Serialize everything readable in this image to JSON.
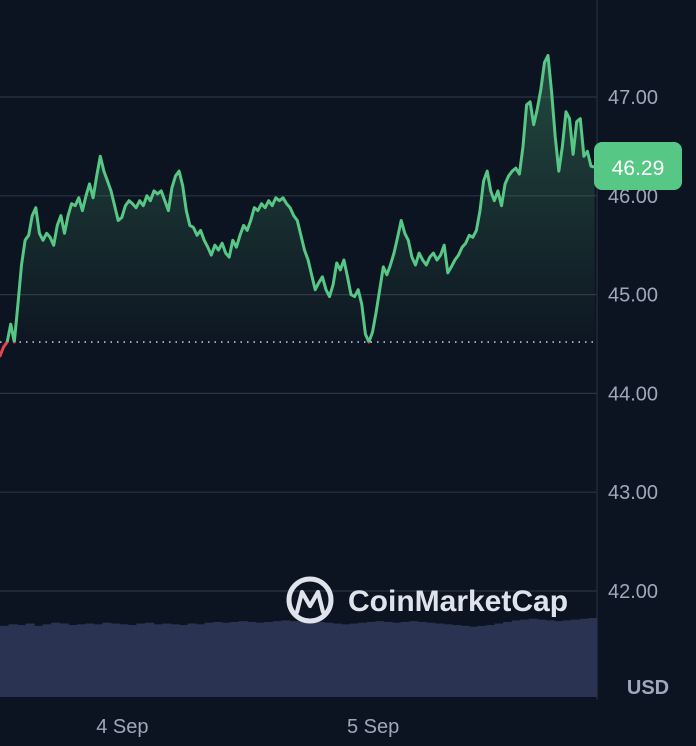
{
  "chart_data": {
    "type": "line",
    "currency": "USD",
    "current_price": "46.29",
    "baseline": 44.52,
    "ylim": [
      41.0,
      48.0
    ],
    "yticks": [
      {
        "value": 47.0,
        "label": "47.00"
      },
      {
        "value": 46.0,
        "label": "46.00"
      },
      {
        "value": 45.0,
        "label": "45.00"
      },
      {
        "value": 44.0,
        "label": "44.00"
      },
      {
        "value": 43.0,
        "label": "43.00"
      },
      {
        "value": 42.0,
        "label": "42.00"
      }
    ],
    "xticks": [
      {
        "value": 0.21,
        "label": "4 Sep"
      },
      {
        "value": 0.63,
        "label": "5 Sep"
      }
    ],
    "colors": {
      "up": "#57c785",
      "down": "#e0484e",
      "grid": "#2a3245",
      "volume": "#2b3352",
      "badge": "#57c785"
    },
    "series": [
      {
        "values": [
          [
            0.0,
            44.38
          ],
          [
            0.006,
            44.47
          ],
          [
            0.012,
            44.52
          ],
          [
            0.018,
            44.7
          ],
          [
            0.024,
            44.52
          ],
          [
            0.03,
            44.9
          ],
          [
            0.036,
            45.3
          ],
          [
            0.042,
            45.55
          ],
          [
            0.048,
            45.6
          ],
          [
            0.054,
            45.8
          ],
          [
            0.06,
            45.88
          ],
          [
            0.066,
            45.62
          ],
          [
            0.072,
            45.55
          ],
          [
            0.078,
            45.62
          ],
          [
            0.084,
            45.58
          ],
          [
            0.09,
            45.5
          ],
          [
            0.096,
            45.7
          ],
          [
            0.102,
            45.8
          ],
          [
            0.108,
            45.62
          ],
          [
            0.114,
            45.8
          ],
          [
            0.12,
            45.92
          ],
          [
            0.126,
            45.9
          ],
          [
            0.132,
            45.98
          ],
          [
            0.138,
            45.85
          ],
          [
            0.144,
            46.0
          ],
          [
            0.15,
            46.12
          ],
          [
            0.156,
            45.98
          ],
          [
            0.162,
            46.2
          ],
          [
            0.168,
            46.4
          ],
          [
            0.174,
            46.25
          ],
          [
            0.18,
            46.15
          ],
          [
            0.186,
            46.05
          ],
          [
            0.192,
            45.9
          ],
          [
            0.198,
            45.75
          ],
          [
            0.204,
            45.78
          ],
          [
            0.21,
            45.9
          ],
          [
            0.216,
            45.95
          ],
          [
            0.222,
            45.92
          ],
          [
            0.228,
            45.88
          ],
          [
            0.234,
            45.95
          ],
          [
            0.24,
            45.9
          ],
          [
            0.246,
            46.0
          ],
          [
            0.252,
            45.95
          ],
          [
            0.258,
            46.05
          ],
          [
            0.264,
            46.02
          ],
          [
            0.27,
            46.05
          ],
          [
            0.276,
            45.95
          ],
          [
            0.282,
            45.85
          ],
          [
            0.288,
            46.08
          ],
          [
            0.294,
            46.2
          ],
          [
            0.3,
            46.25
          ],
          [
            0.306,
            46.1
          ],
          [
            0.312,
            45.85
          ],
          [
            0.318,
            45.7
          ],
          [
            0.324,
            45.68
          ],
          [
            0.33,
            45.6
          ],
          [
            0.336,
            45.65
          ],
          [
            0.342,
            45.55
          ],
          [
            0.348,
            45.48
          ],
          [
            0.354,
            45.4
          ],
          [
            0.36,
            45.5
          ],
          [
            0.366,
            45.45
          ],
          [
            0.372,
            45.52
          ],
          [
            0.378,
            45.42
          ],
          [
            0.384,
            45.38
          ],
          [
            0.39,
            45.55
          ],
          [
            0.396,
            45.48
          ],
          [
            0.402,
            45.6
          ],
          [
            0.408,
            45.7
          ],
          [
            0.414,
            45.65
          ],
          [
            0.42,
            45.75
          ],
          [
            0.426,
            45.88
          ],
          [
            0.432,
            45.85
          ],
          [
            0.438,
            45.92
          ],
          [
            0.444,
            45.88
          ],
          [
            0.45,
            45.95
          ],
          [
            0.456,
            45.9
          ],
          [
            0.462,
            45.98
          ],
          [
            0.468,
            45.95
          ],
          [
            0.474,
            45.98
          ],
          [
            0.48,
            45.92
          ],
          [
            0.486,
            45.88
          ],
          [
            0.492,
            45.8
          ],
          [
            0.498,
            45.75
          ],
          [
            0.504,
            45.6
          ],
          [
            0.51,
            45.45
          ],
          [
            0.516,
            45.35
          ],
          [
            0.522,
            45.2
          ],
          [
            0.528,
            45.05
          ],
          [
            0.534,
            45.12
          ],
          [
            0.54,
            45.18
          ],
          [
            0.546,
            45.05
          ],
          [
            0.552,
            44.98
          ],
          [
            0.558,
            45.1
          ],
          [
            0.564,
            45.32
          ],
          [
            0.57,
            45.25
          ],
          [
            0.576,
            45.35
          ],
          [
            0.582,
            45.18
          ],
          [
            0.588,
            45.0
          ],
          [
            0.594,
            44.98
          ],
          [
            0.6,
            45.05
          ],
          [
            0.606,
            44.9
          ],
          [
            0.612,
            44.6
          ],
          [
            0.618,
            44.52
          ],
          [
            0.624,
            44.62
          ],
          [
            0.63,
            44.82
          ],
          [
            0.636,
            45.05
          ],
          [
            0.642,
            45.28
          ],
          [
            0.648,
            45.2
          ],
          [
            0.654,
            45.3
          ],
          [
            0.66,
            45.42
          ],
          [
            0.666,
            45.58
          ],
          [
            0.672,
            45.75
          ],
          [
            0.678,
            45.62
          ],
          [
            0.684,
            45.55
          ],
          [
            0.69,
            45.38
          ],
          [
            0.696,
            45.3
          ],
          [
            0.702,
            45.42
          ],
          [
            0.708,
            45.35
          ],
          [
            0.714,
            45.3
          ],
          [
            0.72,
            45.38
          ],
          [
            0.726,
            45.42
          ],
          [
            0.732,
            45.35
          ],
          [
            0.738,
            45.4
          ],
          [
            0.744,
            45.5
          ],
          [
            0.75,
            45.22
          ],
          [
            0.756,
            45.28
          ],
          [
            0.762,
            45.35
          ],
          [
            0.768,
            45.4
          ],
          [
            0.774,
            45.48
          ],
          [
            0.78,
            45.52
          ],
          [
            0.786,
            45.6
          ],
          [
            0.792,
            45.58
          ],
          [
            0.798,
            45.65
          ],
          [
            0.804,
            45.85
          ],
          [
            0.81,
            46.15
          ],
          [
            0.816,
            46.25
          ],
          [
            0.822,
            46.05
          ],
          [
            0.828,
            45.95
          ],
          [
            0.834,
            46.05
          ],
          [
            0.84,
            45.9
          ],
          [
            0.846,
            46.12
          ],
          [
            0.852,
            46.2
          ],
          [
            0.858,
            46.25
          ],
          [
            0.864,
            46.28
          ],
          [
            0.87,
            46.22
          ],
          [
            0.876,
            46.5
          ],
          [
            0.882,
            46.92
          ],
          [
            0.888,
            46.95
          ],
          [
            0.894,
            46.72
          ],
          [
            0.9,
            46.88
          ],
          [
            0.906,
            47.08
          ],
          [
            0.912,
            47.35
          ],
          [
            0.918,
            47.42
          ],
          [
            0.924,
            47.05
          ],
          [
            0.93,
            46.6
          ],
          [
            0.936,
            46.25
          ],
          [
            0.942,
            46.5
          ],
          [
            0.948,
            46.85
          ],
          [
            0.954,
            46.78
          ],
          [
            0.96,
            46.42
          ],
          [
            0.966,
            46.75
          ],
          [
            0.972,
            46.78
          ],
          [
            0.978,
            46.4
          ],
          [
            0.984,
            46.45
          ],
          [
            0.99,
            46.3
          ],
          [
            0.996,
            46.29
          ]
        ]
      }
    ],
    "volume": [
      0.9,
      0.92,
      0.91,
      0.93,
      0.9,
      0.92,
      0.94,
      0.93,
      0.91,
      0.92,
      0.93,
      0.92,
      0.94,
      0.93,
      0.92,
      0.91,
      0.93,
      0.94,
      0.92,
      0.93,
      0.92,
      0.91,
      0.93,
      0.92,
      0.94,
      0.95,
      0.94,
      0.95,
      0.96,
      0.95,
      0.94,
      0.95,
      0.96,
      0.97,
      0.96,
      0.95,
      0.94,
      0.95,
      0.94,
      0.93,
      0.92,
      0.93,
      0.94,
      0.95,
      0.96,
      0.95,
      0.94,
      0.95,
      0.96,
      0.95,
      0.94,
      0.93,
      0.92,
      0.91,
      0.9,
      0.89,
      0.9,
      0.91,
      0.93,
      0.95,
      0.97,
      0.98,
      0.99,
      0.98,
      0.97,
      0.96,
      0.97,
      0.98,
      0.99,
      1.0
    ]
  },
  "watermark": {
    "text": "CoinMarketCap",
    "icon": "coinmarketcap-logo"
  },
  "price_badge": {
    "label": "46.29"
  },
  "axis_unit": "USD"
}
